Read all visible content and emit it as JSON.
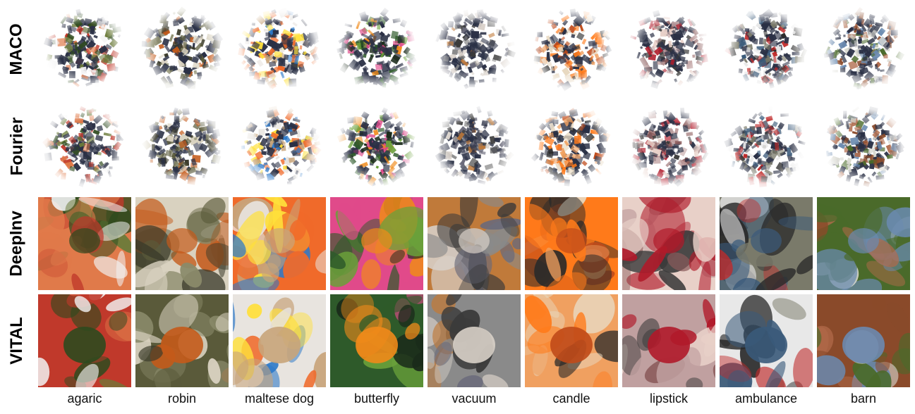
{
  "rows": [
    {
      "label": "MACO",
      "style": "blob"
    },
    {
      "label": "Fourier",
      "style": "blob"
    },
    {
      "label": "DeepInv",
      "style": "scene"
    },
    {
      "label": "VITAL",
      "style": "scene"
    }
  ],
  "columns": [
    "agaric",
    "robin",
    "maltese dog",
    "butterfly",
    "vacuum",
    "candle",
    "lipstick",
    "ambulance",
    "barn"
  ],
  "palettes": [
    [
      "#c0392b",
      "#2e4a1e",
      "#f2f2f2",
      "#e07a4a",
      "#6b7b3a"
    ],
    [
      "#5a5a3a",
      "#c45a1a",
      "#8a8a6a",
      "#d9d2c0",
      "#3a3a2a"
    ],
    [
      "#e8e4df",
      "#c8a47a",
      "#2c79c9",
      "#f06a2a",
      "#ffe03a"
    ],
    [
      "#2e5a2a",
      "#f08a1a",
      "#6aa03a",
      "#e04a8a",
      "#1a2a1a"
    ],
    [
      "#8a8a8a",
      "#d8d0c8",
      "#3a3a3a",
      "#c07a3a",
      "#6a6a7a"
    ],
    [
      "#f0a060",
      "#c04a1a",
      "#e8d8c0",
      "#ff7a1a",
      "#2a2a2a"
    ],
    [
      "#c0a0a0",
      "#b01a2a",
      "#3a3a3a",
      "#e8d0c8",
      "#8a5a5a"
    ],
    [
      "#e8e8e8",
      "#3a5a7a",
      "#c02a2a",
      "#7a7a6a",
      "#2a2a2a"
    ],
    [
      "#8a4a2a",
      "#6a8ab0",
      "#d8d8d0",
      "#4a6a2a",
      "#b06a4a"
    ]
  ]
}
